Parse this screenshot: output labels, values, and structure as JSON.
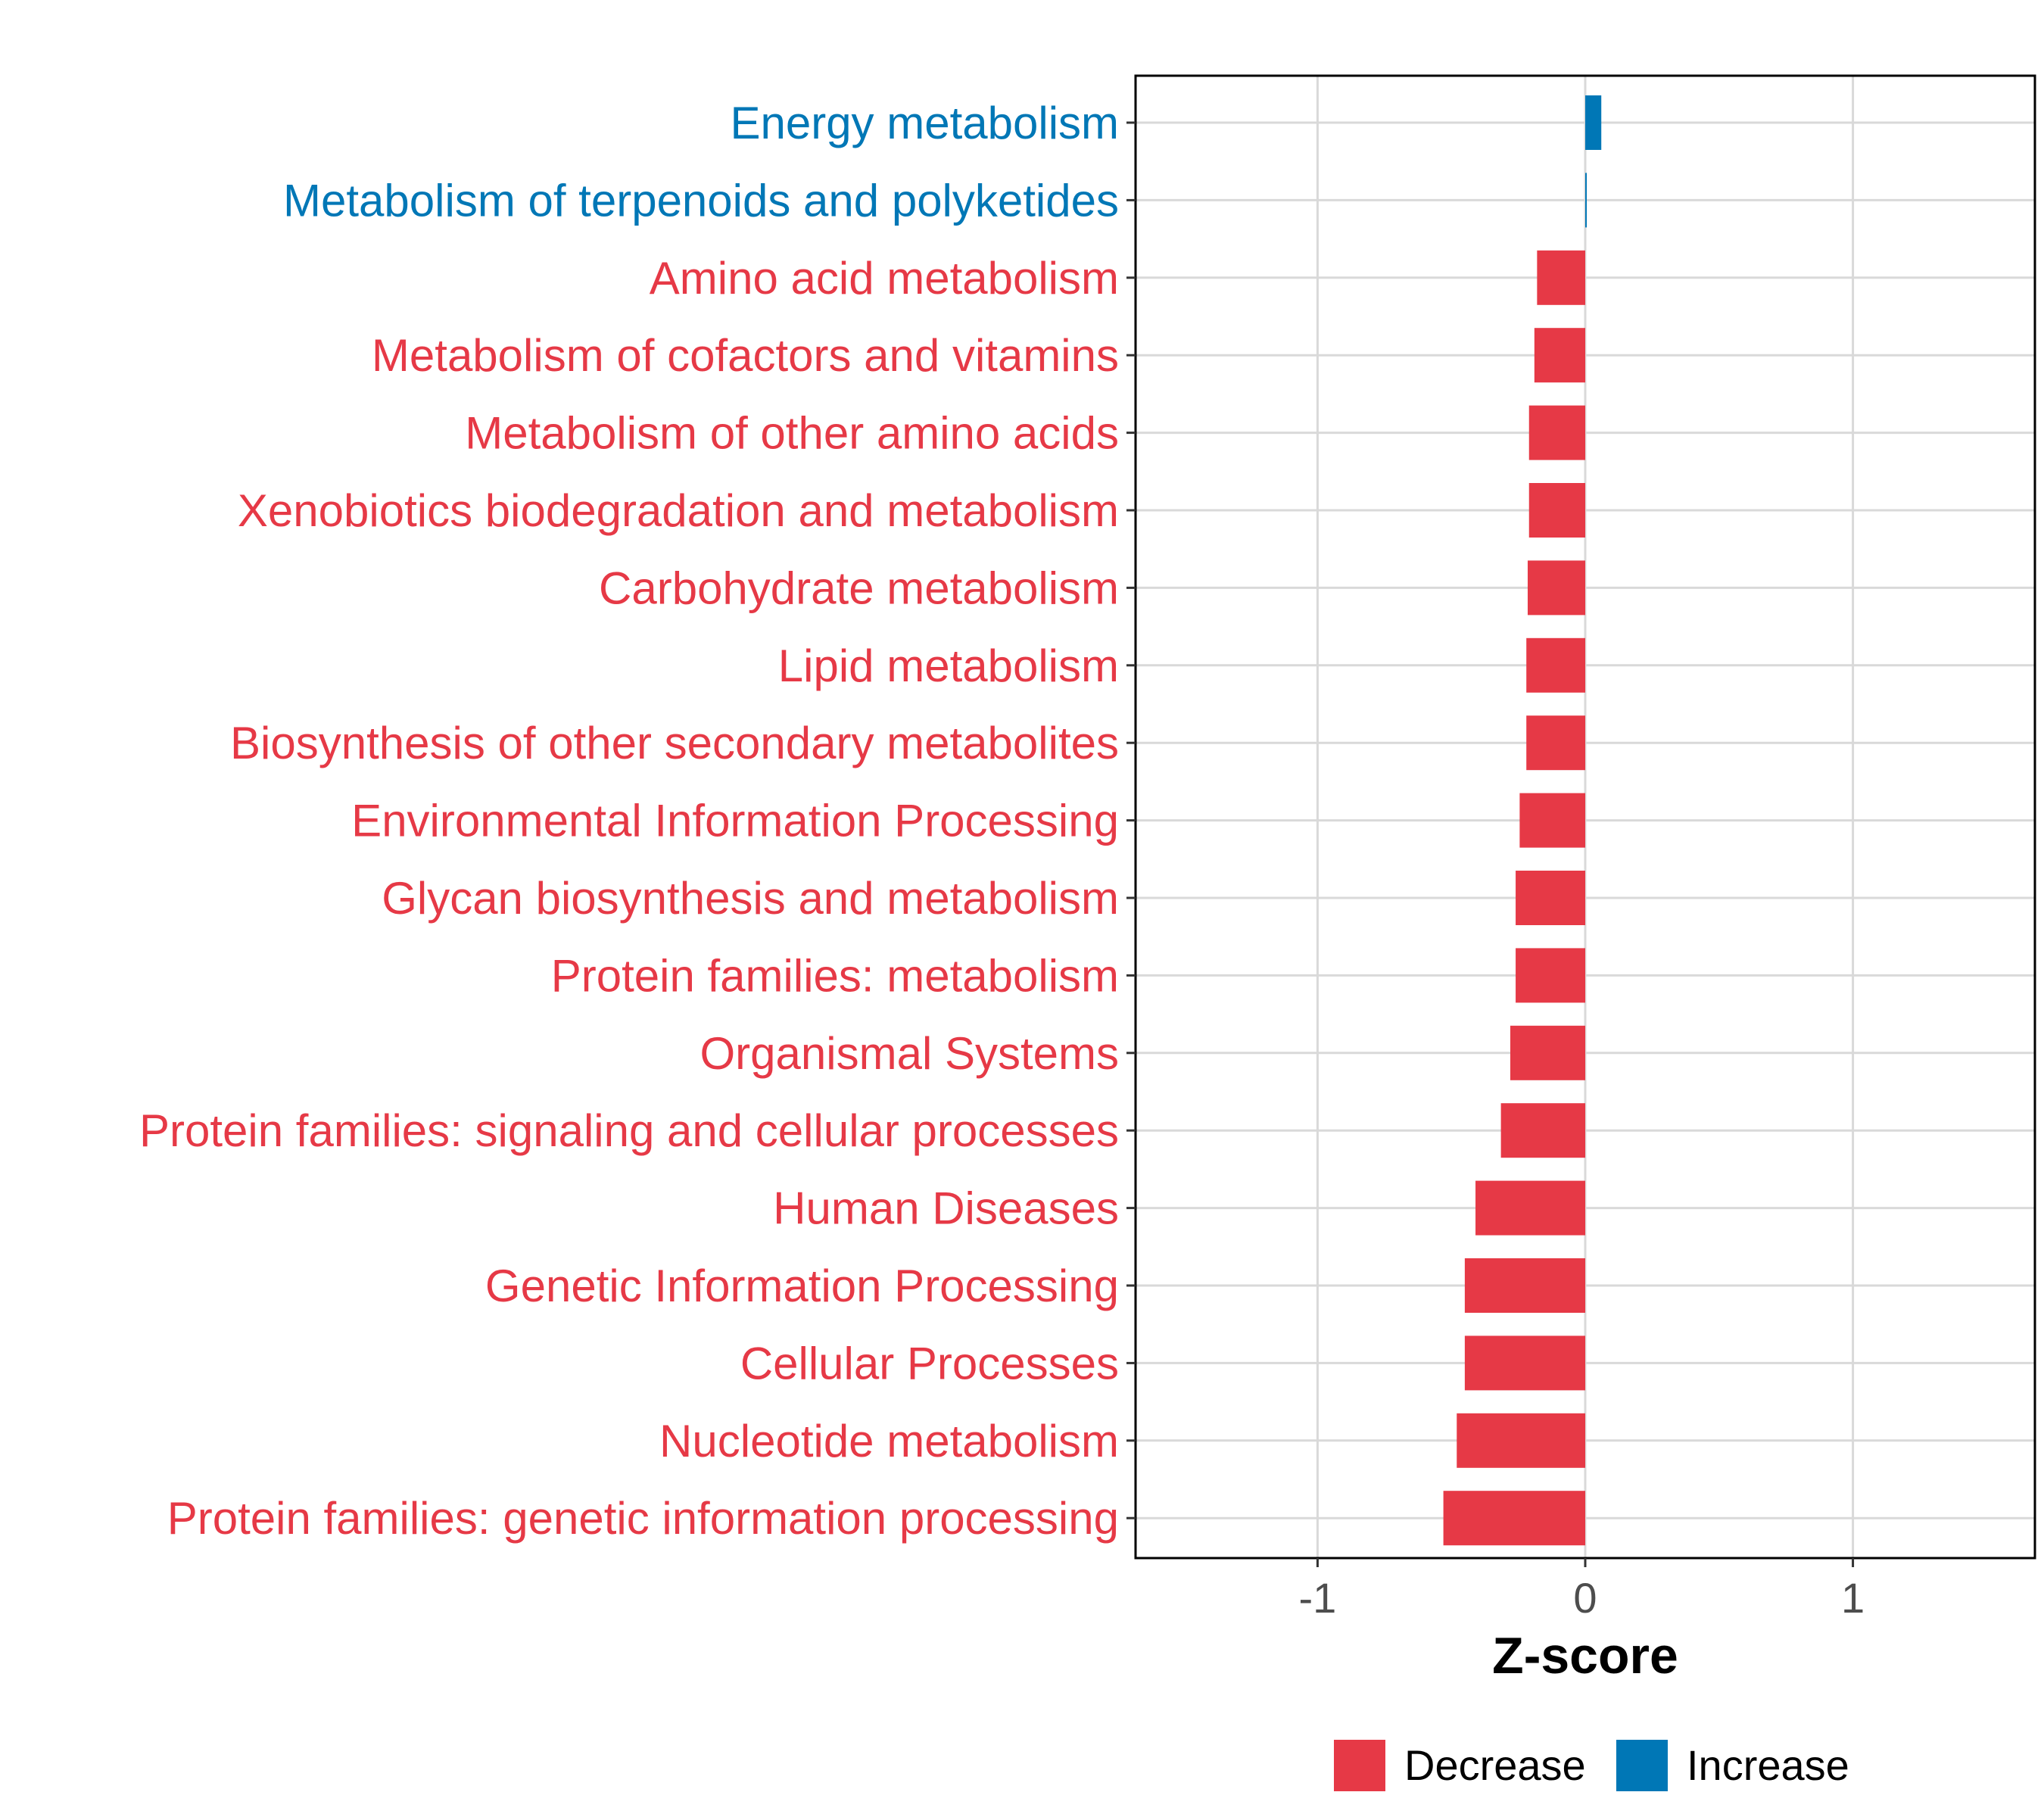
{
  "chart_data": {
    "type": "bar",
    "orientation": "horizontal",
    "categories": [
      "Energy metabolism",
      "Metabolism of terpenoids and polyketides",
      "Amino acid metabolism",
      "Metabolism of cofactors and vitamins",
      "Metabolism of other amino acids",
      "Xenobiotics biodegradation and metabolism",
      "Carbohydrate metabolism",
      "Lipid metabolism",
      "Biosynthesis of other secondary metabolites",
      "Environmental Information Processing",
      "Glycan biosynthesis and metabolism",
      "Protein families: metabolism",
      "Organismal Systems",
      "Protein families: signaling and cellular processes",
      "Human Diseases",
      "Genetic Information Processing",
      "Cellular Processes",
      "Nucleotide metabolism",
      "Protein families: genetic information processing"
    ],
    "values": [
      0.06,
      0.003,
      -0.18,
      -0.19,
      -0.21,
      -0.21,
      -0.215,
      -0.22,
      -0.22,
      -0.245,
      -0.26,
      -0.26,
      -0.28,
      -0.315,
      -0.41,
      -0.45,
      -0.45,
      -0.48,
      -0.53
    ],
    "groups": [
      "Increase",
      "Increase",
      "Decrease",
      "Decrease",
      "Decrease",
      "Decrease",
      "Decrease",
      "Decrease",
      "Decrease",
      "Decrease",
      "Decrease",
      "Decrease",
      "Decrease",
      "Decrease",
      "Decrease",
      "Decrease",
      "Decrease",
      "Decrease",
      "Decrease"
    ],
    "title": "",
    "xlabel": "Z-score",
    "ylabel": "",
    "xlim": [
      -1.68,
      1.68
    ],
    "xticks": [
      -1,
      0,
      1
    ],
    "xtick_labels": [
      "-1",
      "0",
      "1"
    ],
    "grid": true,
    "legend": {
      "position": "bottom",
      "entries": [
        {
          "label": "Decrease",
          "color": "#E63946"
        },
        {
          "label": "Increase",
          "color": "#0077B6"
        }
      ]
    },
    "colors": {
      "Decrease": "#E63946",
      "Increase": "#0077B6"
    }
  }
}
